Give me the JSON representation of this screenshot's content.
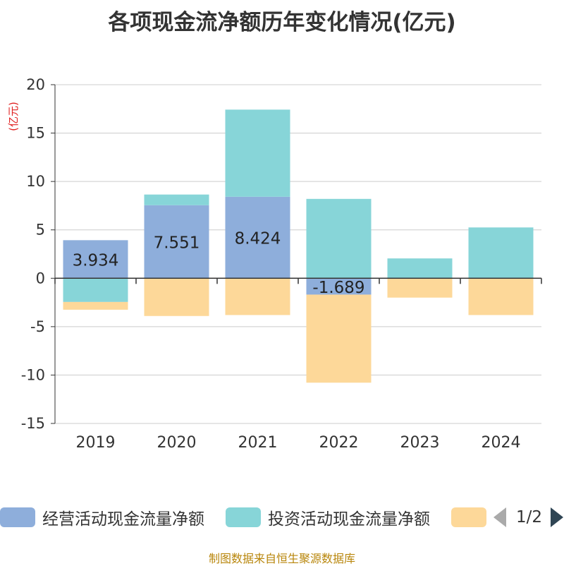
{
  "chart_data": {
    "type": "bar",
    "title": "各项现金流净额历年变化情况(亿元)",
    "ylabel": "(亿元)",
    "xlabel": "",
    "categories": [
      "2019",
      "2020",
      "2021",
      "2022",
      "2023",
      "2024"
    ],
    "ylim": [
      -15,
      20
    ],
    "yticks": [
      20,
      15,
      10,
      5,
      0,
      -5,
      -10,
      -15
    ],
    "stacked": true,
    "grid": true,
    "series": [
      {
        "name": "经营活动现金流量净额",
        "color": "#8eaedb",
        "values": [
          3.934,
          7.551,
          8.424,
          -1.689,
          0.05,
          0.05
        ],
        "labels": [
          "3.934",
          "7.551",
          "8.424",
          "-1.689",
          "",
          ""
        ]
      },
      {
        "name": "投资活动现金流量净额",
        "color": "#87d5d8",
        "values": [
          -2.45,
          1.1,
          9.0,
          8.2,
          2.0,
          5.2
        ]
      },
      {
        "name": "",
        "color": "#fdd899",
        "values": [
          -0.8,
          -3.9,
          -3.8,
          -9.1,
          -2.0,
          -3.8
        ]
      }
    ]
  },
  "legend": {
    "pager": "1/2"
  },
  "footer": {
    "source": "制图数据来自恒生聚源数据库"
  }
}
